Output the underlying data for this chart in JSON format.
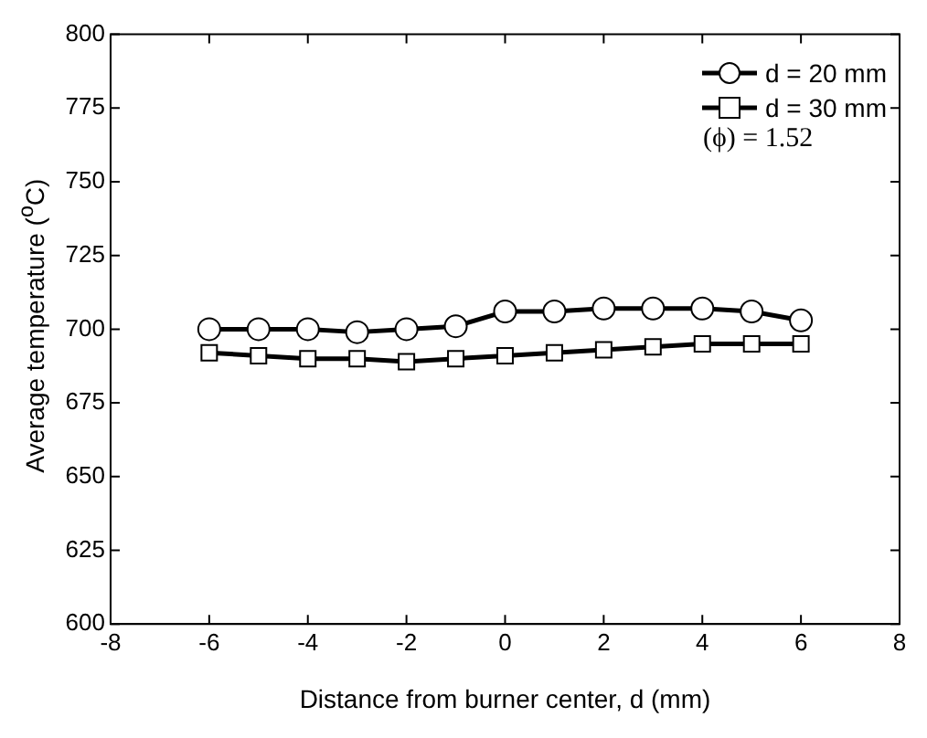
{
  "chart_data": {
    "type": "line",
    "xlabel": "Distance from burner center, d (mm)",
    "ylabel": "Average temperature ($^{o}$C)",
    "x": [
      -6,
      -5,
      -4,
      -3,
      -2,
      -1,
      0,
      1,
      2,
      3,
      4,
      5,
      6
    ],
    "series": [
      {
        "name": "d = 20 mm",
        "color": "#000000",
        "marker": "circle",
        "values": [
          700,
          700,
          700,
          699,
          700,
          701,
          706,
          706,
          707,
          707,
          707,
          706,
          703
        ]
      },
      {
        "name": "d = 30 mm",
        "color": "#000000",
        "marker": "square",
        "values": [
          692,
          691,
          690,
          690,
          689,
          690,
          691,
          692,
          693,
          694,
          695,
          695,
          695
        ]
      }
    ],
    "xlim": [
      -8,
      8
    ],
    "xticks": [
      -8,
      -6,
      -4,
      -2,
      0,
      2,
      4,
      6,
      8
    ],
    "ylim": [
      600,
      800
    ],
    "yticks": [
      600,
      625,
      650,
      675,
      700,
      725,
      750,
      775,
      800
    ],
    "grid": false,
    "legend": "top right",
    "line_style": "solid",
    "annotations": [
      "(ϕ) = 1.52"
    ]
  }
}
